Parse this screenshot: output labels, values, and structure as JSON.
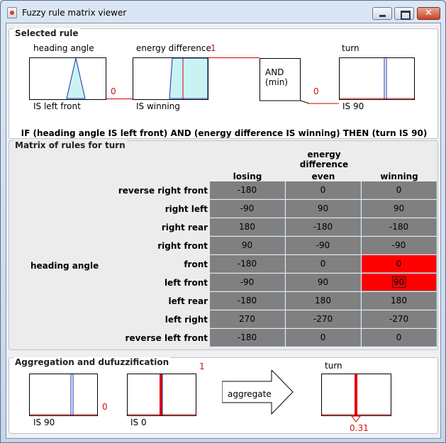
{
  "window": {
    "title": "Fuzzy rule matrix viewer"
  },
  "selected_rule": {
    "panel_title": "Selected rule",
    "antecedent1": {
      "variable": "heading angle",
      "term_label": "IS left front",
      "activation": "0"
    },
    "antecedent2": {
      "variable": "energy difference",
      "term_label": "IS winning",
      "activation": "1"
    },
    "operator_line1": "AND",
    "operator_line2": "(min)",
    "consequent": {
      "variable": "turn",
      "term_label": "IS 90",
      "activation": "0"
    },
    "rule_text": "IF (heading angle IS left front) AND (energy difference IS winning) THEN (turn IS 90)"
  },
  "matrix": {
    "panel_title": "Matrix of rules for turn",
    "column_variable": "energy difference",
    "row_variable": "heading angle",
    "columns": [
      "losing",
      "even",
      "winning"
    ],
    "rows": [
      {
        "label": "reverse right front",
        "values": [
          "-180",
          "0",
          "0"
        ]
      },
      {
        "label": "right left",
        "values": [
          "-90",
          "90",
          "90"
        ]
      },
      {
        "label": "right rear",
        "values": [
          "180",
          "-180",
          "-180"
        ]
      },
      {
        "label": "right front",
        "values": [
          "90",
          "-90",
          "-90"
        ]
      },
      {
        "label": "front",
        "values": [
          "-180",
          "0",
          "0"
        ]
      },
      {
        "label": "left front",
        "values": [
          "-90",
          "90",
          "90"
        ]
      },
      {
        "label": "left rear",
        "values": [
          "-180",
          "180",
          "180"
        ]
      },
      {
        "label": "left right",
        "values": [
          "270",
          "-270",
          "-270"
        ]
      },
      {
        "label": "reverse left front",
        "values": [
          "-180",
          "0",
          "0"
        ]
      }
    ],
    "highlight_color": "#ff0000",
    "cell_color": "#808080"
  },
  "aggregation": {
    "panel_title": "Aggregation and dufuzzification",
    "input1": {
      "term_label": "IS 90",
      "activation": "0"
    },
    "input2": {
      "term_label": "IS 0",
      "activation": "1"
    },
    "aggregate_label": "aggregate",
    "output": {
      "variable": "turn",
      "crisp_value": "0.31"
    }
  }
}
